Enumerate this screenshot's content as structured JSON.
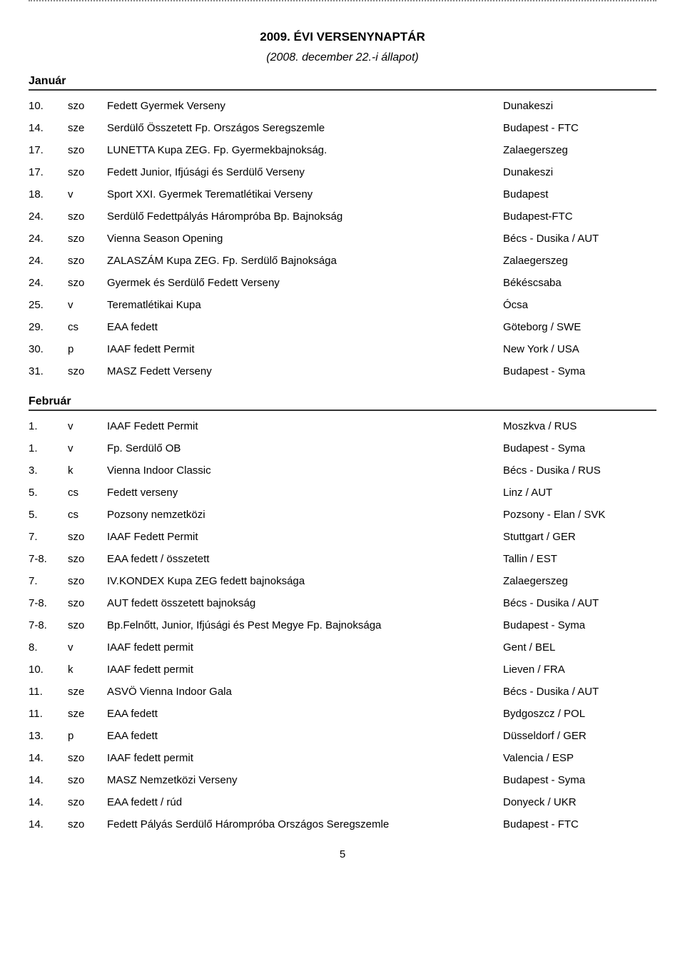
{
  "title": "2009. ÉVI VERSENYNAPTÁR",
  "subtitle": "(2008. december 22.-i állapot)",
  "page_number": "5",
  "months": [
    {
      "name": "Január",
      "events": [
        {
          "date": "10.",
          "day": "szo",
          "desc": "Fedett Gyermek Verseny",
          "loc": "Dunakeszi"
        },
        {
          "date": "14.",
          "day": "sze",
          "desc": "Serdülő Összetett Fp. Országos Seregszemle",
          "loc": "Budapest - FTC"
        },
        {
          "date": "17.",
          "day": "szo",
          "desc": "LUNETTA Kupa ZEG. Fp. Gyermekbajnokság.",
          "loc": "Zalaegerszeg"
        },
        {
          "date": "17.",
          "day": "szo",
          "desc": "Fedett Junior, Ifjúsági és Serdülő Verseny",
          "loc": "Dunakeszi"
        },
        {
          "date": "18.",
          "day": "v",
          "desc": "Sport XXI. Gyermek Terematlétikai Verseny",
          "loc": "Budapest"
        },
        {
          "date": "24.",
          "day": "szo",
          "desc": "Serdülő Fedettpályás Hárompróba Bp. Bajnokság",
          "loc": "Budapest-FTC"
        },
        {
          "date": "24.",
          "day": "szo",
          "desc": "Vienna Season Opening",
          "loc": "Bécs - Dusika / AUT"
        },
        {
          "date": "24.",
          "day": "szo",
          "desc": "ZALASZÁM Kupa ZEG. Fp. Serdülő Bajnoksága",
          "loc": "Zalaegerszeg"
        },
        {
          "date": "24.",
          "day": "szo",
          "desc": "Gyermek és Serdülő Fedett Verseny",
          "loc": "Békéscsaba"
        },
        {
          "date": "25.",
          "day": "v",
          "desc": "Terematlétikai Kupa",
          "loc": "Ócsa"
        },
        {
          "date": "29.",
          "day": "cs",
          "desc": "EAA fedett",
          "loc": "Göteborg / SWE"
        },
        {
          "date": "30.",
          "day": "p",
          "desc": "IAAF fedett Permit",
          "loc": "New York / USA"
        },
        {
          "date": "31.",
          "day": "szo",
          "desc": "MASZ Fedett Verseny",
          "loc": "Budapest - Syma"
        }
      ]
    },
    {
      "name": "Február",
      "events": [
        {
          "date": "1.",
          "day": "v",
          "desc": "IAAF Fedett Permit",
          "loc": "Moszkva / RUS"
        },
        {
          "date": "1.",
          "day": "v",
          "desc": "Fp. Serdülő OB",
          "loc": "Budapest  - Syma"
        },
        {
          "date": "3.",
          "day": "k",
          "desc": "Vienna Indoor Classic",
          "loc": "Bécs - Dusika / RUS"
        },
        {
          "date": "5.",
          "day": "cs",
          "desc": "Fedett verseny",
          "loc": "Linz / AUT"
        },
        {
          "date": "5.",
          "day": "cs",
          "desc": "Pozsony nemzetközi",
          "loc": "Pozsony - Elan / SVK"
        },
        {
          "date": "7.",
          "day": "szo",
          "desc": "IAAF Fedett Permit",
          "loc": "Stuttgart / GER"
        },
        {
          "date": "7-8.",
          "day": "szo",
          "desc": "EAA fedett / összetett",
          "loc": "Tallin / EST"
        },
        {
          "date": "7.",
          "day": "szo",
          "desc": "IV.KONDEX Kupa ZEG fedett bajnoksága",
          "loc": "Zalaegerszeg"
        },
        {
          "date": "7-8.",
          "day": "szo",
          "desc": "AUT fedett összetett bajnokság",
          "loc": "Bécs - Dusika / AUT"
        },
        {
          "date": "7-8.",
          "day": "szo",
          "desc": "Bp.Felnőtt, Junior, Ifjúsági és Pest Megye Fp. Bajnoksága",
          "loc": "Budapest - Syma"
        },
        {
          "date": "8.",
          "day": "v",
          "desc": "IAAF fedett permit",
          "loc": "Gent / BEL"
        },
        {
          "date": "10.",
          "day": "k",
          "desc": "IAAF fedett permit",
          "loc": "Lieven / FRA"
        },
        {
          "date": "11.",
          "day": "sze",
          "desc": "ASVÖ Vienna Indoor Gala",
          "loc": "Bécs - Dusika / AUT"
        },
        {
          "date": "11.",
          "day": "sze",
          "desc": "EAA fedett",
          "loc": "Bydgoszcz / POL"
        },
        {
          "date": "13.",
          "day": "p",
          "desc": "EAA fedett",
          "loc": "Düsseldorf / GER"
        },
        {
          "date": "14.",
          "day": "szo",
          "desc": "IAAF fedett permit",
          "loc": "Valencia / ESP"
        },
        {
          "date": "14.",
          "day": "szo",
          "desc": "MASZ Nemzetközi Verseny",
          "loc": "Budapest  - Syma"
        },
        {
          "date": "14.",
          "day": "szo",
          "desc": "EAA fedett / rúd",
          "loc": "Donyeck / UKR"
        },
        {
          "date": "14.",
          "day": "szo",
          "desc": "Fedett Pályás Serdülő Hárompróba Országos Seregszemle",
          "loc": "Budapest - FTC"
        }
      ]
    }
  ]
}
